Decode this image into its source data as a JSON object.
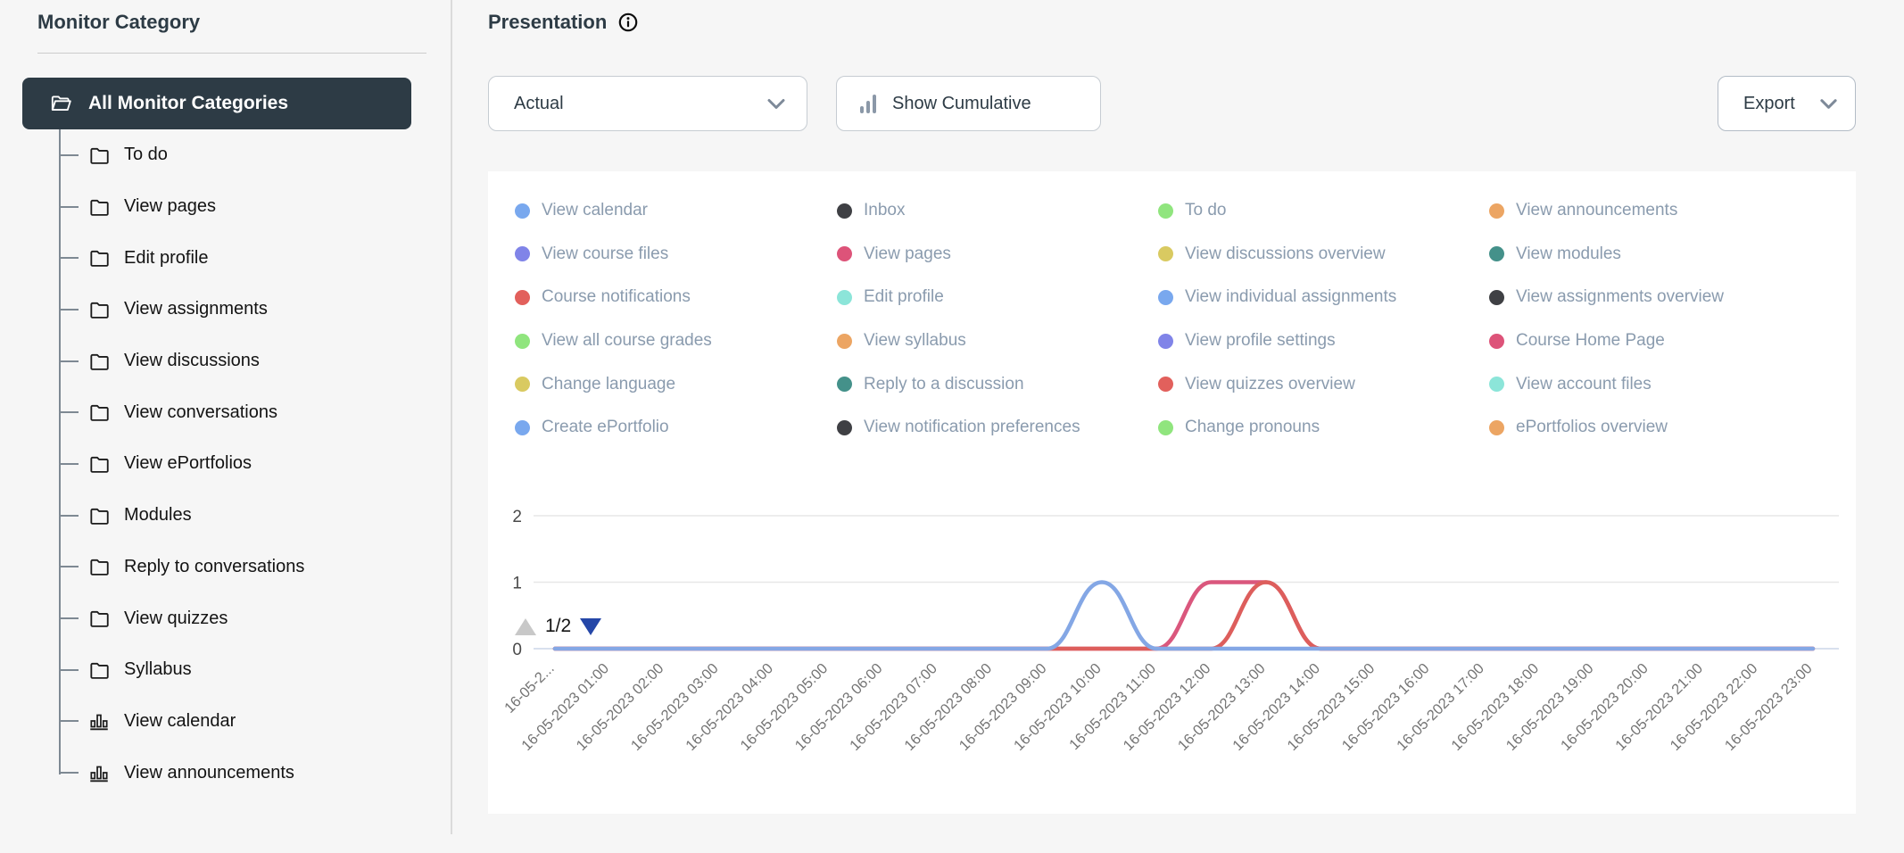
{
  "sidebar": {
    "title": "Monitor Category",
    "root": {
      "label": "All Monitor Categories"
    },
    "items": [
      {
        "label": "To do",
        "icon": "folder-icon"
      },
      {
        "label": "View pages",
        "icon": "folder-icon"
      },
      {
        "label": "Edit profile",
        "icon": "folder-icon"
      },
      {
        "label": "View assignments",
        "icon": "folder-icon"
      },
      {
        "label": "View discussions",
        "icon": "folder-icon"
      },
      {
        "label": "View conversations",
        "icon": "folder-icon"
      },
      {
        "label": "View ePortfolios",
        "icon": "folder-icon"
      },
      {
        "label": "Modules",
        "icon": "folder-icon"
      },
      {
        "label": "Reply to conversations",
        "icon": "folder-icon"
      },
      {
        "label": "View quizzes",
        "icon": "folder-icon"
      },
      {
        "label": "Syllabus",
        "icon": "folder-icon"
      },
      {
        "label": "View calendar",
        "icon": "bar-chart-icon"
      },
      {
        "label": "View announcements",
        "icon": "bar-chart-icon"
      }
    ]
  },
  "header": {
    "title": "Presentation"
  },
  "toolbar": {
    "presentation_select_value": "Actual",
    "cumulative_label": "Show Cumulative",
    "export_label": "Export"
  },
  "legend": {
    "pager_label": "1/2",
    "columns": [
      [
        {
          "label": "View calendar",
          "color": "#79a8ee"
        },
        {
          "label": "View course files",
          "color": "#8084e8"
        },
        {
          "label": "Course notifications",
          "color": "#e2605c"
        },
        {
          "label": "View all course grades",
          "color": "#90e57e"
        },
        {
          "label": "Change language",
          "color": "#d9ca61"
        },
        {
          "label": "Create ePortfolio",
          "color": "#79a8ee"
        }
      ],
      [
        {
          "label": "Inbox",
          "color": "#3f4044"
        },
        {
          "label": "View pages",
          "color": "#dd5379"
        },
        {
          "label": "Edit profile",
          "color": "#8ce5d9"
        },
        {
          "label": "View syllabus",
          "color": "#eca563"
        },
        {
          "label": "Reply to a discussion",
          "color": "#44918a"
        },
        {
          "label": "View notification preferences",
          "color": "#3f4044"
        }
      ],
      [
        {
          "label": "To do",
          "color": "#90e57e"
        },
        {
          "label": "View discussions overview",
          "color": "#d9ca61"
        },
        {
          "label": "View individual assignments",
          "color": "#79a8ee"
        },
        {
          "label": "View profile settings",
          "color": "#8084e8"
        },
        {
          "label": "View quizzes overview",
          "color": "#e2605c"
        },
        {
          "label": "Change pronouns",
          "color": "#90e57e"
        }
      ],
      [
        {
          "label": "View announcements",
          "color": "#eca563"
        },
        {
          "label": "View modules",
          "color": "#44918a"
        },
        {
          "label": "View assignments overview",
          "color": "#3f4044"
        },
        {
          "label": "Course Home Page",
          "color": "#dd5379"
        },
        {
          "label": "View account files",
          "color": "#8ce5d9"
        },
        {
          "label": "ePortfolios overview",
          "color": "#eca563"
        }
      ]
    ]
  },
  "chart_data": {
    "type": "line",
    "title": "",
    "xlabel": "",
    "ylabel": "",
    "ylim": [
      0,
      2
    ],
    "y_ticks": [
      0,
      1,
      2
    ],
    "grid": true,
    "legend_position": "top",
    "categories": [
      "16-05-2...",
      "16-05-2023 01:00",
      "16-05-2023 02:00",
      "16-05-2023 03:00",
      "16-05-2023 04:00",
      "16-05-2023 05:00",
      "16-05-2023 06:00",
      "16-05-2023 07:00",
      "16-05-2023 08:00",
      "16-05-2023 09:00",
      "16-05-2023 10:00",
      "16-05-2023 11:00",
      "16-05-2023 12:00",
      "16-05-2023 13:00",
      "16-05-2023 14:00",
      "16-05-2023 15:00",
      "16-05-2023 16:00",
      "16-05-2023 17:00",
      "16-05-2023 18:00",
      "16-05-2023 19:00",
      "16-05-2023 20:00",
      "16-05-2023 21:00",
      "16-05-2023 22:00",
      "16-05-2023 23:00"
    ],
    "series": [
      {
        "name": "View pages",
        "color": "#da577d",
        "values": [
          0,
          0,
          0,
          0,
          0,
          0,
          0,
          0,
          0,
          0,
          0,
          0,
          1,
          1,
          0,
          0,
          0,
          0,
          0,
          0,
          0,
          0,
          0,
          0
        ]
      },
      {
        "name": "Course notifications",
        "color": "#dd5e5c",
        "values": [
          0,
          0,
          0,
          0,
          0,
          0,
          0,
          0,
          0,
          0,
          0,
          0,
          0,
          1,
          0,
          0,
          0,
          0,
          0,
          0,
          0,
          0,
          0,
          0
        ]
      },
      {
        "name": "View calendar",
        "color": "#84a7e5",
        "values": [
          0,
          0,
          0,
          0,
          0,
          0,
          0,
          0,
          0,
          0,
          1,
          0,
          0,
          0,
          0,
          0,
          0,
          0,
          0,
          0,
          0,
          0,
          0,
          0
        ]
      }
    ]
  }
}
